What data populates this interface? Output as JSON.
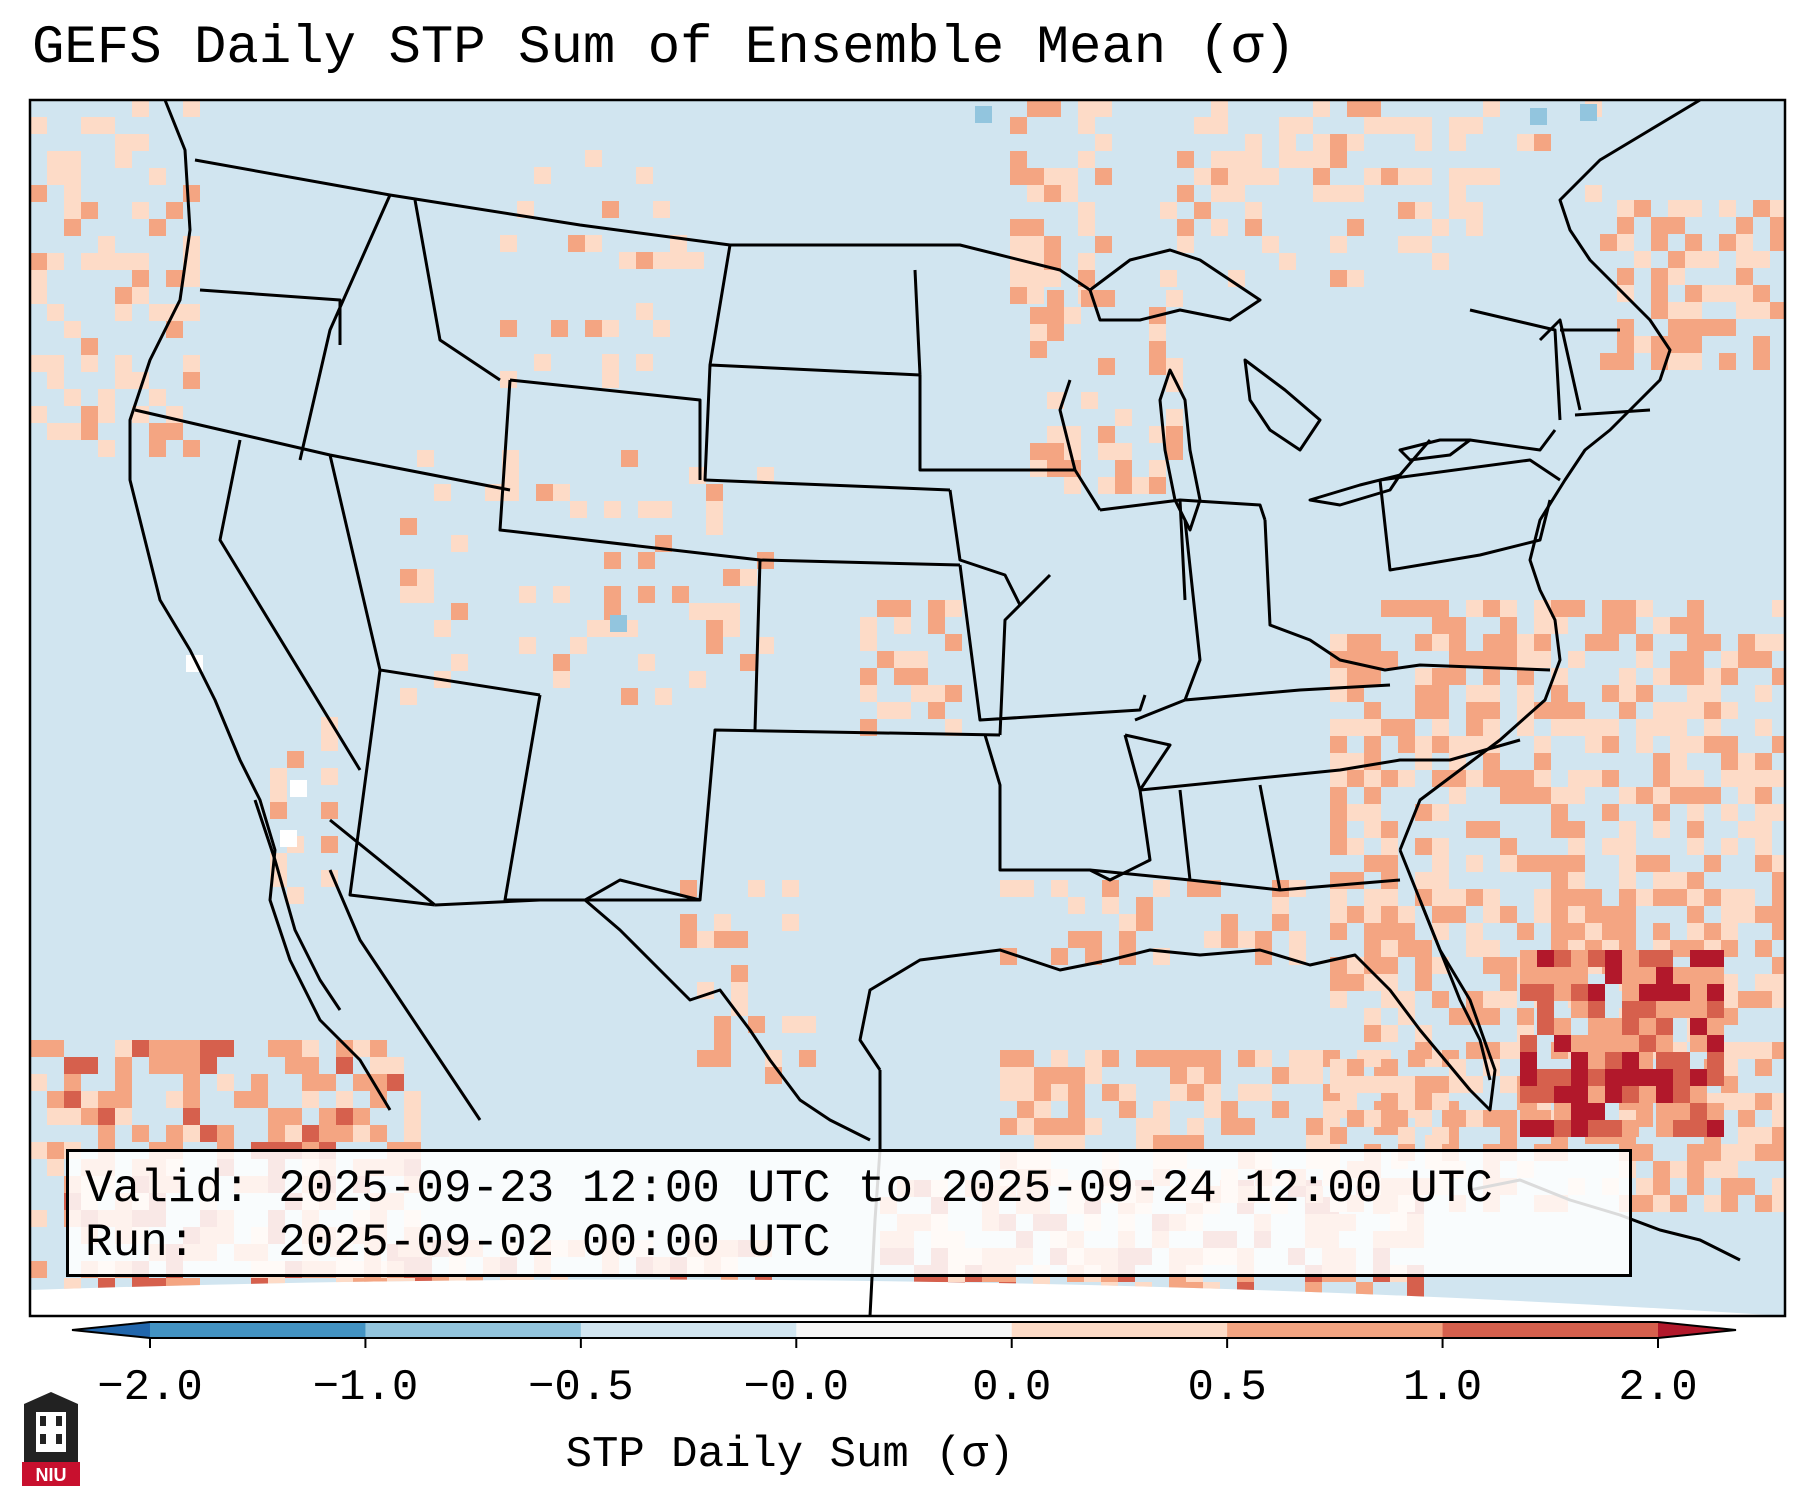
{
  "title": "GEFS Daily STP Sum of Ensemble Mean (σ)",
  "valid_line": "Valid: 2025-09-23 12:00 UTC to 2025-09-24 12:00 UTC",
  "run_line": "Run:   2025-09-02 00:00 UTC",
  "colorbar": {
    "label": "STP Daily Sum (σ)",
    "ticks": [
      "−2.0",
      "−1.0",
      "−0.5",
      "−0.0",
      "0.0",
      "0.5",
      "1.0",
      "2.0"
    ],
    "colors": [
      "#4393c3",
      "#92c5de",
      "#d1e5f0",
      "#f7f7f7",
      "#fddbc7",
      "#f4a582",
      "#d6604d",
      "#b2182b"
    ],
    "extend_low_color": "#2166ac",
    "extend_high_color": "#b2182b"
  },
  "logo_text": "NIU",
  "colors": {
    "background_field": "#d1e5f0",
    "map_lines": "#000000"
  }
}
